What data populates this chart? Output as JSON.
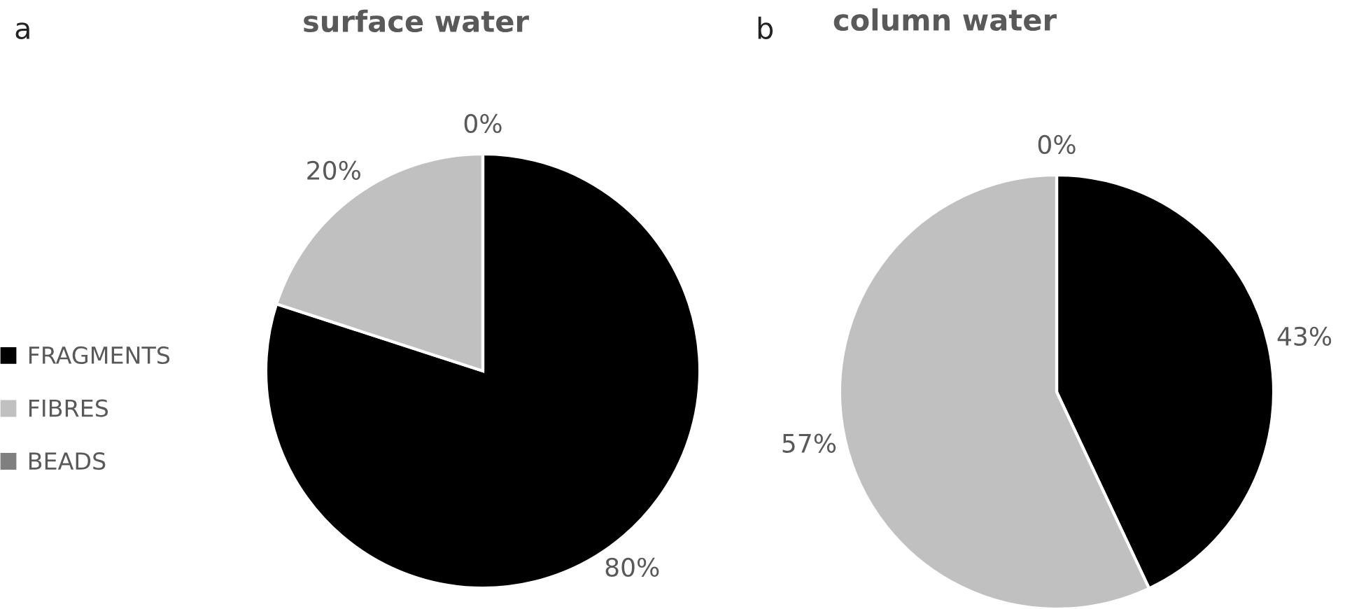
{
  "chart_data": [
    {
      "type": "pie",
      "title": "surface water",
      "annotations": [
        "a"
      ],
      "categories": [
        "FRAGMENTS",
        "FIBRES",
        "BEADS"
      ],
      "values": [
        80,
        20,
        0
      ],
      "colors": [
        "#000000",
        "#c0c0c0",
        "#7f7f7f"
      ],
      "value_labels": [
        "80%",
        "20%",
        "0%"
      ],
      "legend": "left"
    },
    {
      "type": "pie",
      "title": "column water",
      "annotations": [
        "b"
      ],
      "categories": [
        null,
        null,
        null
      ],
      "values": [
        43,
        57,
        0
      ],
      "colors": [
        "#000000",
        "#c0c0c0",
        "#7f7f7f"
      ],
      "value_labels": [
        "43%",
        "57%",
        "0%"
      ]
    }
  ]
}
